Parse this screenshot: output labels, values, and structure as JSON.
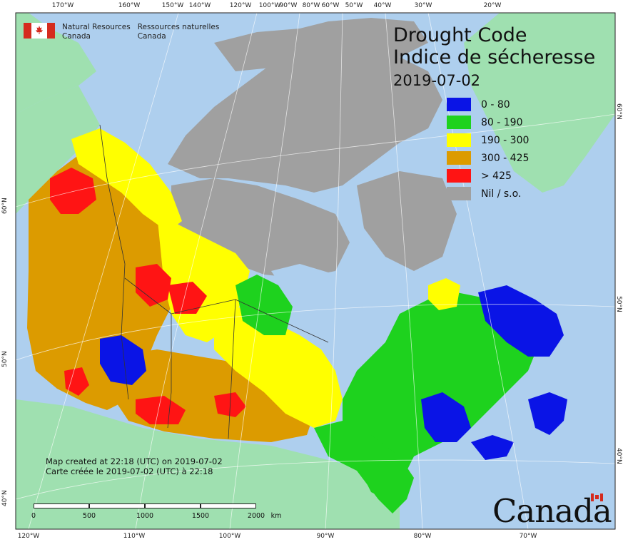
{
  "title": {
    "en": "Drought Code",
    "fr": "Indice de sécheresse",
    "date": "2019-07-02"
  },
  "department": {
    "en_line1": "Natural Resources",
    "en_line2": "Canada",
    "fr_line1": "Ressources naturelles",
    "fr_line2": "Canada"
  },
  "legend": [
    {
      "label": "0 - 80",
      "color": "#0a14e6"
    },
    {
      "label": "80 - 190",
      "color": "#1ed21e"
    },
    {
      "label": "190 - 300",
      "color": "#ffff00"
    },
    {
      "label": "300 - 425",
      "color": "#dc9b00"
    },
    {
      "label": "> 425",
      "color": "#ff1414"
    },
    {
      "label": "Nil / s.o.",
      "color": "#a0a0a0"
    }
  ],
  "credits": {
    "en": "Map created at 22:18 (UTC) on 2019-07-02",
    "fr": "Carte créée le 2019-07-02 (UTC) à 22:18"
  },
  "scale": {
    "labels": [
      "0",
      "500",
      "1000",
      "1500",
      "2000"
    ],
    "unit": "km"
  },
  "graticule": {
    "top": [
      "170°W",
      "160°W",
      "150°W",
      "140°W",
      "120°W",
      "100°W",
      "90°W",
      "80°W",
      "60°W",
      "50°W",
      "40°W",
      "30°W",
      "20°W"
    ],
    "bottom": [
      "120°W",
      "110°W",
      "100°W",
      "90°W",
      "80°W",
      "70°W"
    ],
    "left": [
      "60°N",
      "50°N",
      "40°N"
    ],
    "right": [
      "60°N",
      "50°N",
      "40°N"
    ]
  },
  "wordmark": "Canada",
  "colors": {
    "ocean": "#aecfee",
    "land_outside": "#9fe0b0",
    "nodata": "#a0a0a0",
    "blue": "#0a14e6",
    "green": "#1ed21e",
    "yellow": "#ffff00",
    "orange": "#dc9b00",
    "red": "#ff1414"
  }
}
